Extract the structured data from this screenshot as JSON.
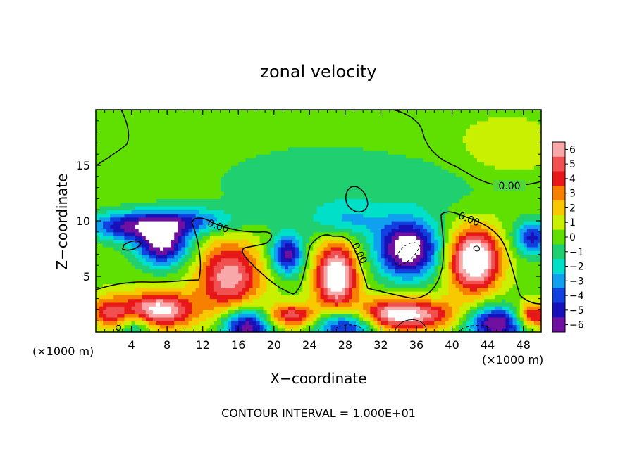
{
  "chart_data": {
    "type": "heatmap",
    "title": "zonal velocity",
    "xlabel": "X−coordinate",
    "ylabel": "Z−coordinate",
    "x_unit": "(×1000 m)",
    "footer": "CONTOUR INTERVAL = 1.000E+01",
    "xlim": [
      0,
      50
    ],
    "ylim": [
      0,
      20
    ],
    "x_ticks": [
      4,
      8,
      12,
      16,
      20,
      24,
      28,
      32,
      36,
      40,
      44,
      48
    ],
    "y_ticks": [
      5,
      10,
      15
    ],
    "x_tick_labels": [
      "4",
      "8",
      "12",
      "16",
      "20",
      "24",
      "28",
      "32",
      "36",
      "40",
      "44",
      "48"
    ],
    "y_tick_labels": [
      "5",
      "10",
      "15"
    ],
    "colorbar": {
      "min": -6,
      "max": 6,
      "ticks": [
        "6",
        "5",
        "4",
        "3",
        "2",
        "1",
        "0",
        "−1",
        "−2",
        "−3",
        "−4",
        "−5",
        "−6"
      ],
      "colors": [
        "#f8a8a8",
        "#f05050",
        "#e81818",
        "#f88000",
        "#f8c800",
        "#c8f000",
        "#60e000",
        "#20d070",
        "#00e0c8",
        "#10a0f0",
        "#1040e0",
        "#1810b8",
        "#7010a0"
      ]
    },
    "contour_labels": [
      "0.00",
      "0.00",
      "0.00",
      "0.00"
    ],
    "features": [
      {
        "x": 14,
        "z": 17,
        "value": 0.3,
        "rx": 10,
        "rz": 3
      },
      {
        "x": 46,
        "z": 16.5,
        "value": 1.2,
        "rx": 5,
        "rz": 2.5
      },
      {
        "x": 22,
        "z": 14,
        "value": -1.2,
        "rx": 12,
        "rz": 4
      },
      {
        "x": 36,
        "z": 13,
        "value": -1.0,
        "rx": 12,
        "rz": 3
      },
      {
        "x": 3,
        "z": 9.5,
        "value": -4.5,
        "rx": 4,
        "rz": 1.3
      },
      {
        "x": 10,
        "z": 10,
        "value": -4.0,
        "rx": 6,
        "rz": 1.2
      },
      {
        "x": 7.5,
        "z": 8,
        "value": -7.0,
        "rx": 3,
        "rz": 2
      },
      {
        "x": 21.5,
        "z": 7,
        "value": -6.0,
        "rx": 1.8,
        "rz": 1.8
      },
      {
        "x": 28,
        "z": 10,
        "value": -2.5,
        "rx": 4,
        "rz": 1.5
      },
      {
        "x": 35,
        "z": 7.5,
        "value": -8.0,
        "rx": 3.5,
        "rz": 2.6
      },
      {
        "x": 49,
        "z": 8.5,
        "value": -5.0,
        "rx": 2,
        "rz": 1.5
      },
      {
        "x": 4.5,
        "z": 0.5,
        "value": -3.0,
        "rx": 2,
        "rz": 1.2
      },
      {
        "x": 17,
        "z": 0.6,
        "value": -7.0,
        "rx": 2.8,
        "rz": 1.6
      },
      {
        "x": 28,
        "z": 0.8,
        "value": -7.0,
        "rx": 3.5,
        "rz": 1.6
      },
      {
        "x": 45,
        "z": 0.8,
        "value": -7.0,
        "rx": 3.5,
        "rz": 1.6
      },
      {
        "x": 15,
        "z": 5,
        "value": 6.0,
        "rx": 3.5,
        "rz": 3.2
      },
      {
        "x": 27,
        "z": 5,
        "value": 8.0,
        "rx": 2.3,
        "rz": 3.0
      },
      {
        "x": 42.5,
        "z": 6.5,
        "value": 8.5,
        "rx": 2.8,
        "rz": 2.8
      },
      {
        "x": 7,
        "z": 2,
        "value": 7.0,
        "rx": 4,
        "rz": 1.6
      },
      {
        "x": 34,
        "z": 1.6,
        "value": 7.5,
        "rx": 6,
        "rz": 1.4
      },
      {
        "x": 22,
        "z": 1.5,
        "value": 5.0,
        "rx": 3,
        "rz": 1.1
      },
      {
        "x": 49,
        "z": 1.5,
        "value": 5.5,
        "rx": 2,
        "rz": 1.2
      },
      {
        "x": 1.5,
        "z": 1.8,
        "value": 4.0,
        "rx": 2,
        "rz": 1.4
      }
    ]
  }
}
